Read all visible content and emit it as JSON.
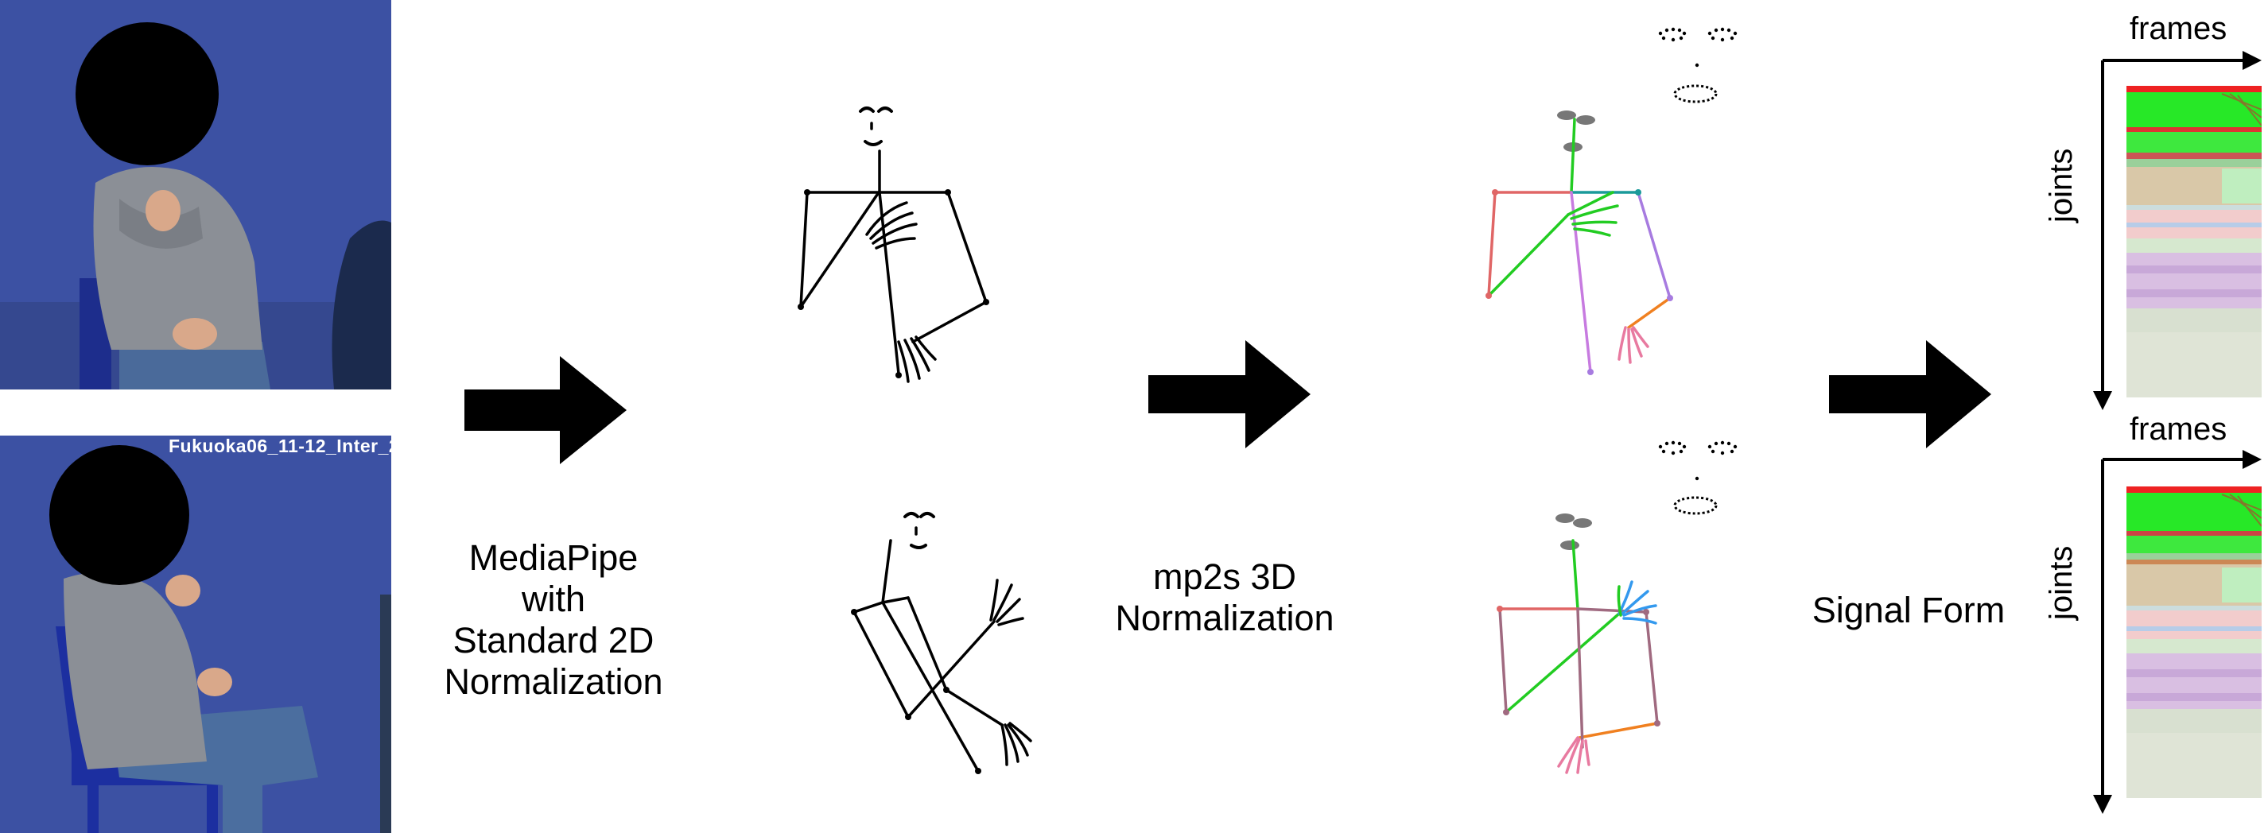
{
  "video_overlay_text": "Fukuoka06_11-12_Inter_2(",
  "step1_caption": [
    "MediaPipe",
    "with",
    "Standard 2D",
    "Normalization"
  ],
  "step2_caption": [
    "mp2s 3D",
    "Normalization"
  ],
  "step3_caption": "Signal Form",
  "signal_axis_x": "frames",
  "signal_axis_y": "joints",
  "colors": {
    "arrow": "#000000",
    "photo_background": "#3b4f9e",
    "skeleton_plain": "#000000",
    "bone_red": "#e06666",
    "bone_green": "#22cc22",
    "bone_teal": "#1a9a9a",
    "bone_purple": "#a77be0",
    "bone_orange": "#f08020",
    "bone_pink": "#e87aa0",
    "bone_blue": "#3399ee",
    "bone_mauve": "#a06a80"
  }
}
